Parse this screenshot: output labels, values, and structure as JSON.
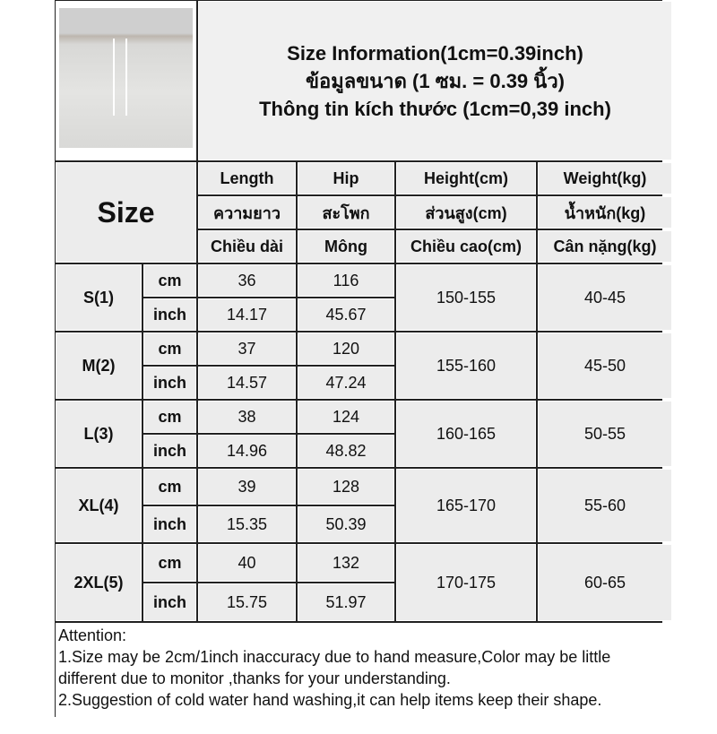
{
  "title": [
    "Size Information(1cm=0.39inch)",
    "ข้อมูลขนาด (1 ซม. = 0.39 นิ้ว)",
    "Thông tin kích thước (1cm=0,39 inch)"
  ],
  "size_label": "Size",
  "headers": [
    [
      "Length",
      "Hip",
      "Height(cm)",
      "Weight(kg)"
    ],
    [
      "ความยาว",
      "สะโพก",
      "ส่วนสูง(cm)",
      "น้ำหนัก(kg)"
    ],
    [
      "Chiều dài",
      "Mông",
      "Chiều cao(cm)",
      "Cân nặng(kg)"
    ]
  ],
  "unit_cm": "cm",
  "unit_inch": "inch",
  "rows": [
    {
      "size": "S(1)",
      "cm": [
        "36",
        "116"
      ],
      "inch": [
        "14.17",
        "45.67"
      ],
      "height": "150-155",
      "weight": "40-45"
    },
    {
      "size": "M(2)",
      "cm": [
        "37",
        "120"
      ],
      "inch": [
        "14.57",
        "47.24"
      ],
      "height": "155-160",
      "weight": "45-50"
    },
    {
      "size": "L(3)",
      "cm": [
        "38",
        "124"
      ],
      "inch": [
        "14.96",
        "48.82"
      ],
      "height": "160-165",
      "weight": "50-55"
    },
    {
      "size": "XL(4)",
      "cm": [
        "39",
        "128"
      ],
      "inch": [
        "15.35",
        "50.39"
      ],
      "height": "165-170",
      "weight": "55-60"
    },
    {
      "size": "2XL(5)",
      "cm": [
        "40",
        "132"
      ],
      "inch": [
        "15.75",
        "51.97"
      ],
      "height": "170-175",
      "weight": "60-65"
    }
  ],
  "attention": [
    "Attention:",
    "1.Size may be 2cm/1inch inaccuracy due to hand measure,Color may be little",
    "different due to monitor ,thanks for your understanding.",
    "2.Suggestion of cold water hand washing,it can help items keep their shape."
  ]
}
